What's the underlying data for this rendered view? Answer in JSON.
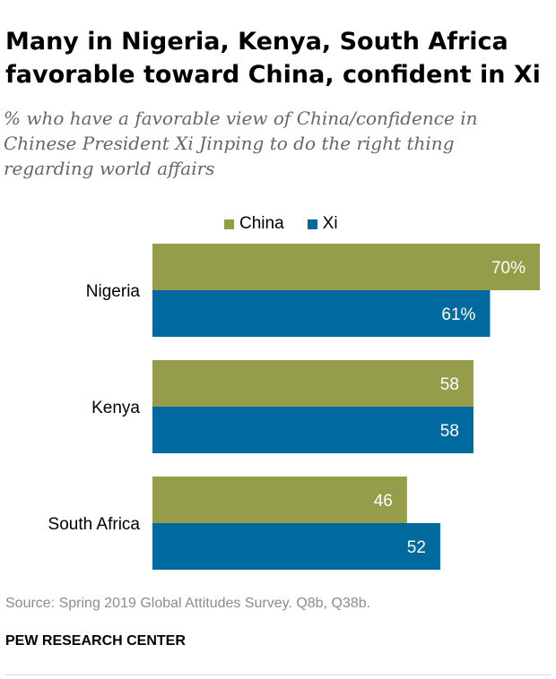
{
  "title": "Many in Nigeria, Kenya, South Africa favorable toward China, confident in Xi",
  "subtitle": "% who have a favorable view of China/confidence in Chinese President Xi Jinping to do the right thing regarding world affairs",
  "source": "Source: Spring 2019 Global Attitudes Survey. Q8b, Q38b.",
  "footer": "PEW RESEARCH CENTER",
  "colors": {
    "china": "#959d4b",
    "xi": "#00699d",
    "label": "#ffffff"
  },
  "chart_data": {
    "type": "bar",
    "orientation": "horizontal",
    "categories": [
      "Nigeria",
      "Kenya",
      "South Africa"
    ],
    "series": [
      {
        "name": "China",
        "values": [
          70,
          58,
          46
        ],
        "labels": [
          "70%",
          "58",
          "46"
        ]
      },
      {
        "name": "Xi",
        "values": [
          61,
          58,
          52
        ],
        "labels": [
          "61%",
          "58",
          "52"
        ]
      }
    ],
    "xlim": [
      0,
      70
    ],
    "grid": false,
    "legend": "top"
  }
}
